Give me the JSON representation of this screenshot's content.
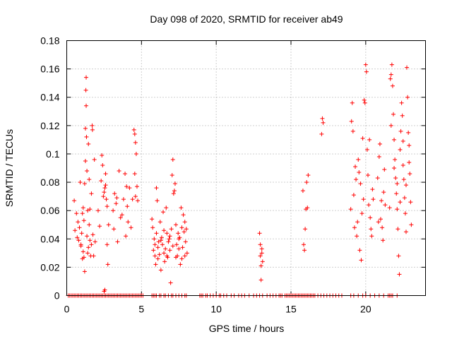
{
  "chart_data": {
    "type": "scatter",
    "title": "Day 098 of 2020, SRMTID for receiver ab49",
    "xlabel": "GPS time / hours",
    "ylabel": "SRMTID / TECUs",
    "xlim": [
      0,
      24
    ],
    "ylim": [
      0,
      0.18
    ],
    "xticks": [
      0,
      5,
      10,
      15,
      20
    ],
    "xtick_labels": [
      "0",
      "5",
      "10",
      "15",
      "20"
    ],
    "yticks": [
      0,
      0.02,
      0.04,
      0.06,
      0.08,
      0.1,
      0.12,
      0.14,
      0.16,
      0.18
    ],
    "ytick_labels": [
      "0",
      "0.02",
      "0.04",
      "0.06",
      "0.08",
      "0.1",
      "0.12",
      "0.14",
      "0.16",
      "0.18"
    ],
    "grid": true,
    "marker": "+",
    "color": "#ff0000",
    "series": [
      {
        "name": "SRMTID",
        "points": [
          [
            0.5,
            0.067
          ],
          [
            0.55,
            0.046
          ],
          [
            0.65,
            0.058
          ],
          [
            0.7,
            0.041
          ],
          [
            0.75,
            0.052
          ],
          [
            0.8,
            0.039
          ],
          [
            0.85,
            0.048
          ],
          [
            0.9,
            0.08
          ],
          [
            0.95,
            0.035
          ],
          [
            1.0,
            0.044
          ],
          [
            1.05,
            0.026
          ],
          [
            1.1,
            0.031
          ],
          [
            1.1,
            0.062
          ],
          [
            1.15,
            0.053
          ],
          [
            1.2,
            0.017
          ],
          [
            1.2,
            0.079
          ],
          [
            1.25,
            0.118
          ],
          [
            1.25,
            0.095
          ],
          [
            1.28,
            0.145
          ],
          [
            1.3,
            0.154
          ],
          [
            1.3,
            0.134
          ],
          [
            1.32,
            0.112
          ],
          [
            1.35,
            0.088
          ],
          [
            1.4,
            0.06
          ],
          [
            1.4,
            0.03
          ],
          [
            1.45,
            0.107
          ],
          [
            1.5,
            0.05
          ],
          [
            1.5,
            0.082
          ],
          [
            1.55,
            0.039
          ],
          [
            1.6,
            0.028
          ],
          [
            1.65,
            0.072
          ],
          [
            1.7,
            0.12
          ],
          [
            1.72,
            0.117
          ],
          [
            1.75,
            0.043
          ],
          [
            1.8,
            0.028
          ],
          [
            1.85,
            0.096
          ],
          [
            1.9,
            0.038
          ],
          [
            0.95,
            0.036
          ],
          [
            1.05,
            0.058
          ],
          [
            1.15,
            0.027
          ],
          [
            1.35,
            0.042
          ],
          [
            1.45,
            0.034
          ],
          [
            1.55,
            0.061
          ],
          [
            1.65,
            0.036
          ],
          [
            2.1,
            0.06
          ],
          [
            2.2,
            0.049
          ],
          [
            2.3,
            0.081
          ],
          [
            2.35,
            0.099
          ],
          [
            2.4,
            0.092
          ],
          [
            2.45,
            0.07
          ],
          [
            2.5,
            0.073
          ],
          [
            2.55,
            0.076
          ],
          [
            2.6,
            0.086
          ],
          [
            2.65,
            0.068
          ],
          [
            2.7,
            0.036
          ],
          [
            2.75,
            0.022
          ],
          [
            2.8,
            0.05
          ],
          [
            2.5,
            0.003
          ],
          [
            2.55,
            0.004
          ],
          [
            2.6,
            0.078
          ],
          [
            2.7,
            0.063
          ],
          [
            3.1,
            0.06
          ],
          [
            3.15,
            0.047
          ],
          [
            3.2,
            0.072
          ],
          [
            3.3,
            0.065
          ],
          [
            3.35,
            0.069
          ],
          [
            3.4,
            0.038
          ],
          [
            3.5,
            0.088
          ],
          [
            3.6,
            0.055
          ],
          [
            3.7,
            0.057
          ],
          [
            3.8,
            0.068
          ],
          [
            3.9,
            0.086
          ],
          [
            3.95,
            0.042
          ],
          [
            4.0,
            0.077
          ],
          [
            4.05,
            0.063
          ],
          [
            4.1,
            0.052
          ],
          [
            4.2,
            0.076
          ],
          [
            4.3,
            0.048
          ],
          [
            4.4,
            0.068
          ],
          [
            4.5,
            0.117
          ],
          [
            4.55,
            0.114
          ],
          [
            4.6,
            0.108
          ],
          [
            4.65,
            0.1
          ],
          [
            4.7,
            0.077
          ],
          [
            4.75,
            0.067
          ],
          [
            4.6,
            0.07
          ],
          [
            4.55,
            0.086
          ],
          [
            5.7,
            0.054
          ],
          [
            5.75,
            0.048
          ],
          [
            5.8,
            0.032
          ],
          [
            5.85,
            0.04
          ],
          [
            5.9,
            0.028
          ],
          [
            5.95,
            0.022
          ],
          [
            6.0,
            0.044
          ],
          [
            6.0,
            0.076
          ],
          [
            6.05,
            0.067
          ],
          [
            6.1,
            0.034
          ],
          [
            6.15,
            0.038
          ],
          [
            6.2,
            0.029
          ],
          [
            6.25,
            0.052
          ],
          [
            6.3,
            0.018
          ],
          [
            6.35,
            0.041
          ],
          [
            6.4,
            0.036
          ],
          [
            6.45,
            0.059
          ],
          [
            6.5,
            0.046
          ],
          [
            6.55,
            0.024
          ],
          [
            6.6,
            0.033
          ],
          [
            6.65,
            0.062
          ],
          [
            6.7,
            0.044
          ],
          [
            6.75,
            0.027
          ],
          [
            6.8,
            0.038
          ],
          [
            6.85,
            0.04
          ],
          [
            6.9,
            0.032
          ],
          [
            6.95,
            0.009
          ],
          [
            7.0,
            0.047
          ],
          [
            7.05,
            0.085
          ],
          [
            7.1,
            0.096
          ],
          [
            7.15,
            0.072
          ],
          [
            7.2,
            0.074
          ],
          [
            7.25,
            0.079
          ],
          [
            7.3,
            0.05
          ],
          [
            7.35,
            0.036
          ],
          [
            7.4,
            0.028
          ],
          [
            7.45,
            0.044
          ],
          [
            7.5,
            0.033
          ],
          [
            7.55,
            0.041
          ],
          [
            7.6,
            0.022
          ],
          [
            7.65,
            0.062
          ],
          [
            7.7,
            0.048
          ],
          [
            7.75,
            0.034
          ],
          [
            7.8,
            0.057
          ],
          [
            7.85,
            0.045
          ],
          [
            7.9,
            0.028
          ],
          [
            7.95,
            0.038
          ],
          [
            8.0,
            0.047
          ],
          [
            8.05,
            0.03
          ],
          [
            5.9,
            0.036
          ],
          [
            6.1,
            0.026
          ],
          [
            6.3,
            0.039
          ],
          [
            6.5,
            0.03
          ],
          [
            6.7,
            0.028
          ],
          [
            6.9,
            0.042
          ],
          [
            7.1,
            0.035
          ],
          [
            7.3,
            0.027
          ],
          [
            7.5,
            0.04
          ],
          [
            7.7,
            0.026
          ],
          [
            7.9,
            0.052
          ],
          [
            12.9,
            0.044
          ],
          [
            12.95,
            0.036
          ],
          [
            13.0,
            0.021
          ],
          [
            13.05,
            0.03
          ],
          [
            13.1,
            0.024
          ],
          [
            13.0,
            0.011
          ],
          [
            12.95,
            0.028
          ],
          [
            13.05,
            0.033
          ],
          [
            15.8,
            0.074
          ],
          [
            15.85,
            0.036
          ],
          [
            15.9,
            0.032
          ],
          [
            15.95,
            0.047
          ],
          [
            16.0,
            0.061
          ],
          [
            16.05,
            0.08
          ],
          [
            16.1,
            0.062
          ],
          [
            16.15,
            0.085
          ],
          [
            17.1,
            0.125
          ],
          [
            17.15,
            0.122
          ],
          [
            17.05,
            0.114
          ],
          [
            19.0,
            0.061
          ],
          [
            19.05,
            0.123
          ],
          [
            19.1,
            0.136
          ],
          [
            19.15,
            0.116
          ],
          [
            19.2,
            0.071
          ],
          [
            19.25,
            0.048
          ],
          [
            19.3,
            0.091
          ],
          [
            19.35,
            0.082
          ],
          [
            19.4,
            0.042
          ],
          [
            19.45,
            0.052
          ],
          [
            19.5,
            0.096
          ],
          [
            19.55,
            0.087
          ],
          [
            19.6,
            0.032
          ],
          [
            19.65,
            0.079
          ],
          [
            19.7,
            0.025
          ],
          [
            19.75,
            0.058
          ],
          [
            19.8,
            0.111
          ],
          [
            19.85,
            0.068
          ],
          [
            19.9,
            0.138
          ],
          [
            19.95,
            0.136
          ],
          [
            20.0,
            0.163
          ],
          [
            20.05,
            0.158
          ],
          [
            20.1,
            0.103
          ],
          [
            20.15,
            0.085
          ],
          [
            20.2,
            0.064
          ],
          [
            20.25,
            0.11
          ],
          [
            20.3,
            0.055
          ],
          [
            20.35,
            0.047
          ],
          [
            20.4,
            0.042
          ],
          [
            20.45,
            0.075
          ],
          [
            20.5,
            0.068
          ],
          [
            20.8,
            0.083
          ],
          [
            20.85,
            0.052
          ],
          [
            20.9,
            0.098
          ],
          [
            20.95,
            0.107
          ],
          [
            21.0,
            0.054
          ],
          [
            21.05,
            0.067
          ],
          [
            21.1,
            0.048
          ],
          [
            21.15,
            0.039
          ],
          [
            21.2,
            0.073
          ],
          [
            21.25,
            0.089
          ],
          [
            21.3,
            0.064
          ],
          [
            21.6,
            0.062
          ],
          [
            21.65,
            0.153
          ],
          [
            21.7,
            0.156
          ],
          [
            21.75,
            0.163
          ],
          [
            21.8,
            0.148
          ],
          [
            21.85,
            0.128
          ],
          [
            21.9,
            0.11
          ],
          [
            21.95,
            0.096
          ],
          [
            22.0,
            0.083
          ],
          [
            22.05,
            0.072
          ],
          [
            22.1,
            0.061
          ],
          [
            22.15,
            0.047
          ],
          [
            22.2,
            0.028
          ],
          [
            22.25,
            0.015
          ],
          [
            22.3,
            0.103
          ],
          [
            22.35,
            0.116
          ],
          [
            22.4,
            0.136
          ],
          [
            22.45,
            0.127
          ],
          [
            22.5,
            0.092
          ],
          [
            22.55,
            0.082
          ],
          [
            22.6,
            0.069
          ],
          [
            22.65,
            0.058
          ],
          [
            22.7,
            0.045
          ],
          [
            22.75,
            0.161
          ],
          [
            22.8,
            0.14
          ],
          [
            22.85,
            0.115
          ],
          [
            22.9,
            0.094
          ],
          [
            22.95,
            0.086
          ],
          [
            23.0,
            0.066
          ],
          [
            23.05,
            0.05
          ],
          [
            21.7,
            0.12
          ],
          [
            21.9,
            0.09
          ],
          [
            22.1,
            0.079
          ],
          [
            22.3,
            0.066
          ],
          [
            22.5,
            0.109
          ],
          [
            22.7,
            0.078
          ],
          [
            22.9,
            0.106
          ]
        ],
        "zero_points_x": [
          0.1,
          0.2,
          0.3,
          0.4,
          0.5,
          0.6,
          0.7,
          0.8,
          0.9,
          1.0,
          1.1,
          1.2,
          1.3,
          1.4,
          1.5,
          1.6,
          1.7,
          1.8,
          1.9,
          2.0,
          2.1,
          2.2,
          2.3,
          2.4,
          2.5,
          2.6,
          2.7,
          2.8,
          2.9,
          3.0,
          3.1,
          3.2,
          3.3,
          3.4,
          3.5,
          3.6,
          3.7,
          3.8,
          3.9,
          4.0,
          4.1,
          4.2,
          4.3,
          4.4,
          4.5,
          4.6,
          4.7,
          4.8,
          4.9,
          5.0,
          5.1,
          5.7,
          5.8,
          5.9,
          6.0,
          6.2,
          6.3,
          6.5,
          6.6,
          6.8,
          7.0,
          7.1,
          7.3,
          7.5,
          7.7,
          7.9,
          8.0,
          8.9,
          9.0,
          9.1,
          9.3,
          9.4,
          9.6,
          9.8,
          10.0,
          10.2,
          10.3,
          10.5,
          10.7,
          11.0,
          11.2,
          11.5,
          11.7,
          11.9,
          12.2,
          12.5,
          12.7,
          12.9,
          13.1,
          13.4,
          13.6,
          13.8,
          14.0,
          14.2,
          14.3,
          14.4,
          14.6,
          14.7,
          14.8,
          14.9,
          15.0,
          15.1,
          15.2,
          15.3,
          15.4,
          15.5,
          15.6,
          15.7,
          15.8,
          15.9,
          16.0,
          16.1,
          16.2,
          16.3,
          16.4,
          16.5,
          16.6,
          16.8,
          17.0,
          17.2,
          17.4,
          17.6,
          17.8,
          18.0,
          18.2,
          18.4,
          19.0,
          19.2,
          19.5,
          19.8,
          20.0,
          20.3,
          20.6,
          20.9,
          21.2,
          21.5,
          21.6,
          21.7,
          21.8,
          22.1
        ]
      }
    ]
  }
}
